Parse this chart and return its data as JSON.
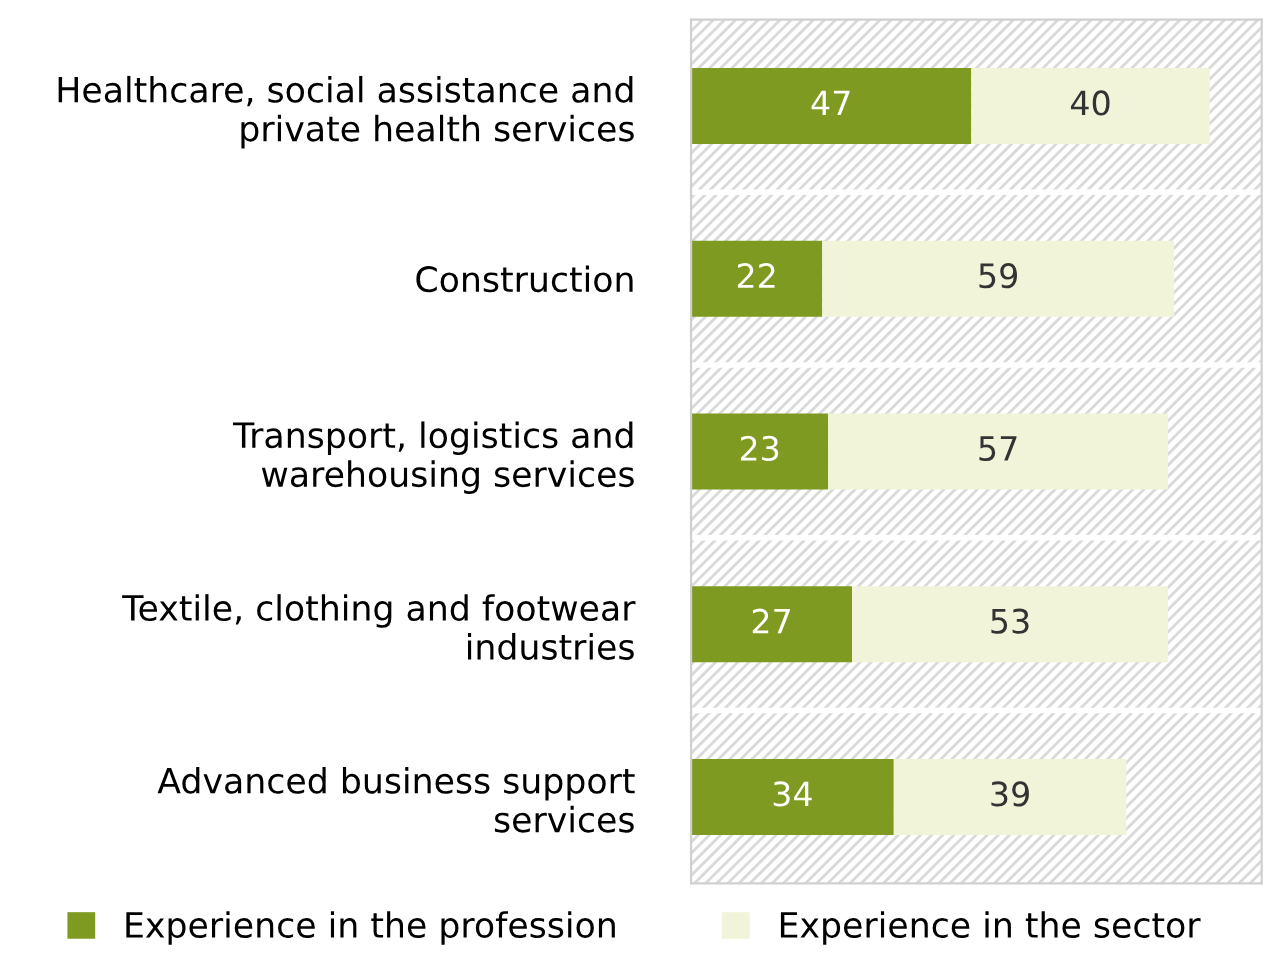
{
  "chart_data": {
    "type": "bar",
    "orientation": "horizontal",
    "stacked": true,
    "data_labels": true,
    "legend": "bottom",
    "grid": false,
    "categories": [
      "Healthcare, social assistance and\nprivate health services",
      "Construction",
      "Transport, logistics and\nwarehousing services",
      "Textile, clothing and footwear\nindustries",
      "Advanced business support\nservices"
    ],
    "series": [
      {
        "name": "Experience in the profession",
        "color": "#7f9a21",
        "values": [
          47,
          22,
          23,
          27,
          34
        ]
      },
      {
        "name": "Experience in the sector",
        "color": "#f1f4d9",
        "values": [
          40,
          59,
          57,
          53,
          39
        ]
      }
    ]
  }
}
